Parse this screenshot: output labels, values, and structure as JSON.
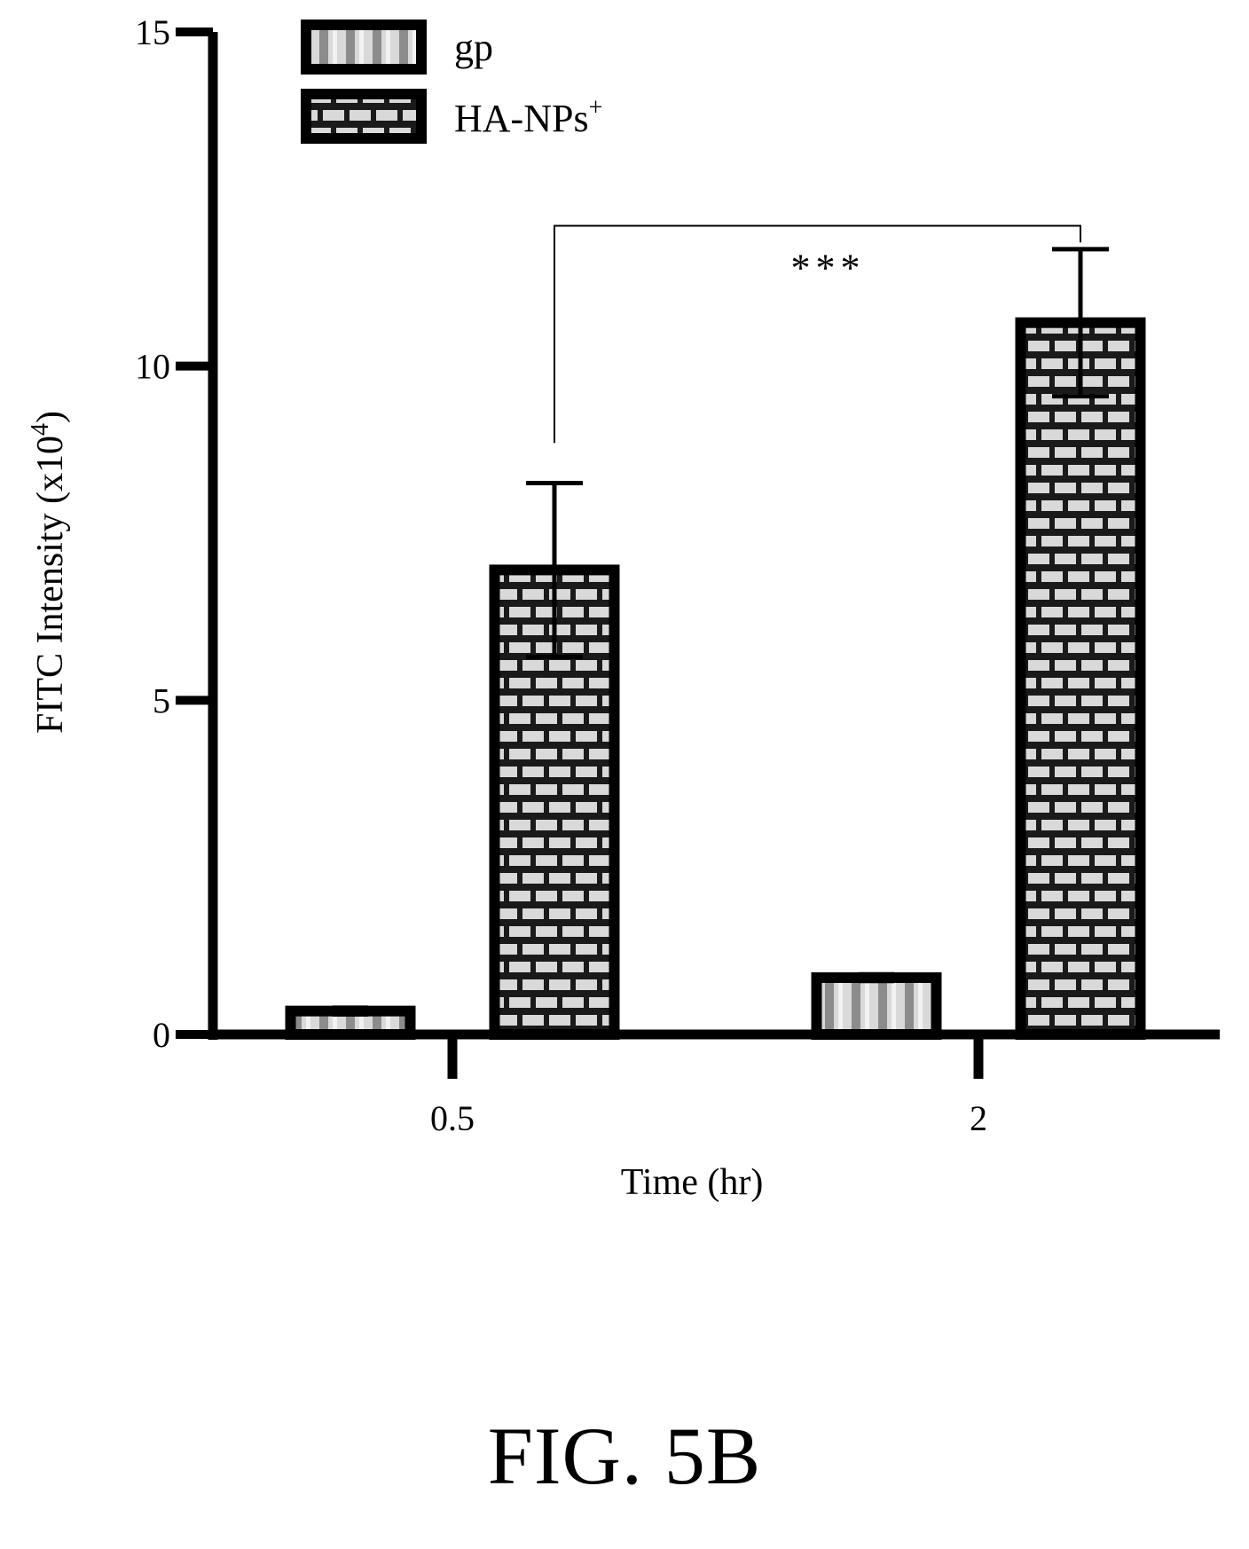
{
  "chart_data": {
    "type": "bar",
    "categories": [
      "0.5",
      "2"
    ],
    "series": [
      {
        "name": "gp",
        "values": [
          0.35,
          0.85
        ],
        "errors": [
          0.05,
          0.05
        ],
        "pattern": "vertical-stripes"
      },
      {
        "name": "HA-NPs",
        "name_superscript": "+",
        "values": [
          6.95,
          10.65
        ],
        "errors": [
          1.3,
          1.1
        ],
        "pattern": "brick"
      }
    ],
    "xlabel": "Time (hr)",
    "ylabel_main": "FITC Intensity (x10",
    "ylabel_exponent": "4",
    "ylabel_close": ")",
    "ylim": [
      0,
      15
    ],
    "yticks": [
      0,
      5,
      10,
      15
    ],
    "ytick_labels": [
      "0",
      "5",
      "10",
      "15"
    ],
    "grid": false,
    "legend_position": "top-left",
    "significance": {
      "from_category": "0.5",
      "to_category": "2",
      "series": "HA-NPs",
      "label": "***"
    }
  },
  "caption": "FIG. 5B",
  "colors": {
    "ink": "#000000",
    "fill_gray": "#d9d9d9",
    "stripe_gray": "#8c8c8c"
  }
}
